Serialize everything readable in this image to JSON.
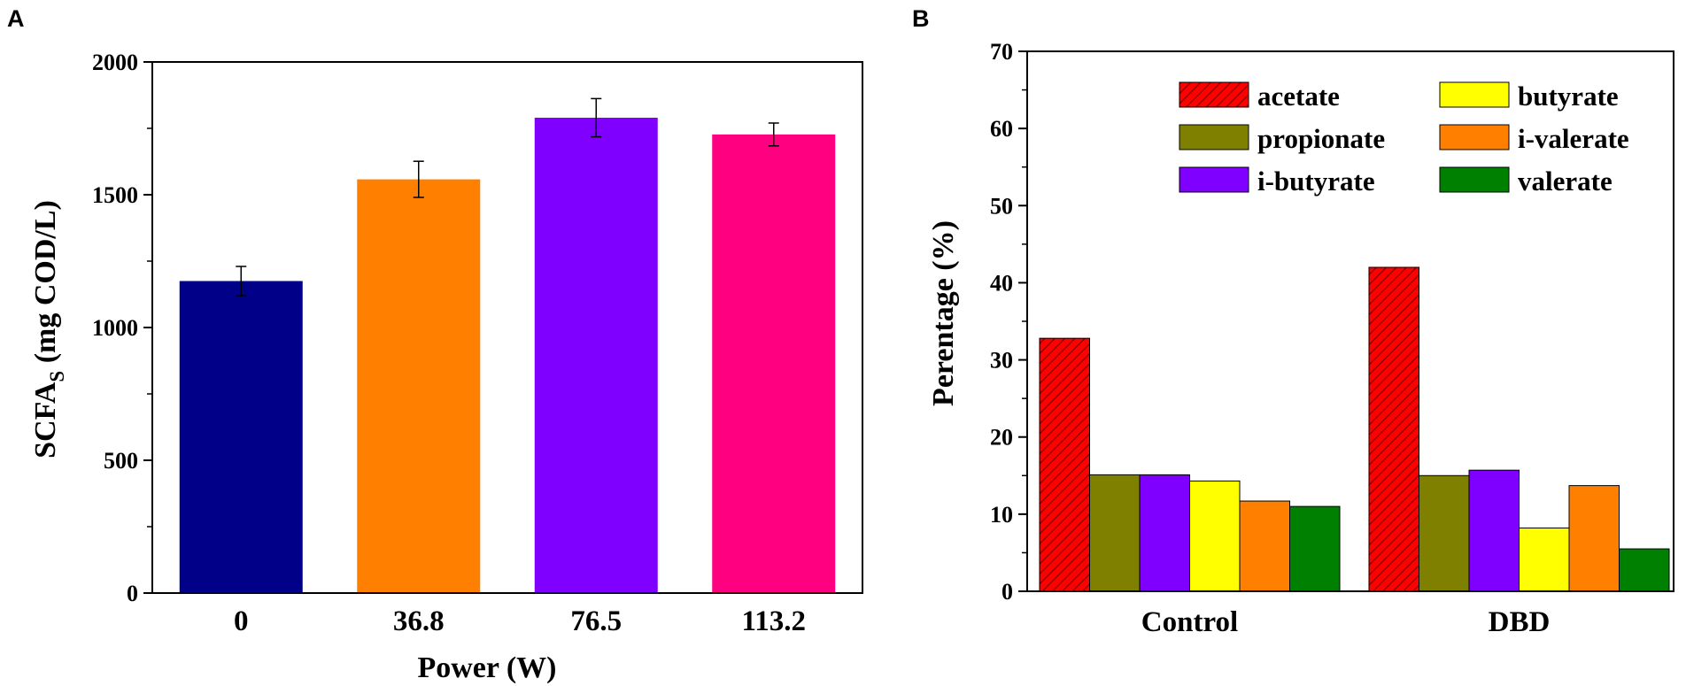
{
  "chart_data": [
    {
      "panel": "A",
      "type": "bar",
      "xlabel": "Power (W)",
      "ylabel_main": "SCFA",
      "ylabel_sub": "S",
      "ylabel_tail": " (mg COD/L)",
      "categories": [
        "0",
        "36.8",
        "76.5",
        "113.2"
      ],
      "values": [
        1175,
        1558,
        1790,
        1727
      ],
      "errors": [
        55,
        68,
        72,
        43
      ],
      "colors": [
        "#000088",
        "#ff8000",
        "#8000ff",
        "#ff0080"
      ],
      "ylim": [
        0,
        2000
      ],
      "yticks": [
        0,
        500,
        1000,
        1500,
        2000
      ],
      "ytick_labels": [
        "0",
        "500",
        "1000",
        "1500",
        "2000"
      ],
      "grid": false
    },
    {
      "panel": "B",
      "type": "bar",
      "xlabel": "",
      "ylabel": "Perentage (%)",
      "categories": [
        "Control",
        "DBD"
      ],
      "series": [
        {
          "name": "acetate",
          "values": [
            32.8,
            42.0
          ],
          "color": "#ff0000",
          "hatch": true
        },
        {
          "name": "propionate",
          "values": [
            15.1,
            15.0
          ],
          "color": "#808000",
          "hatch": false
        },
        {
          "name": "i-butyrate",
          "values": [
            15.1,
            15.7
          ],
          "color": "#8000ff",
          "hatch": false
        },
        {
          "name": "butyrate",
          "values": [
            14.3,
            8.2
          ],
          "color": "#ffff00",
          "hatch": false
        },
        {
          "name": "i-valerate",
          "values": [
            11.7,
            13.7
          ],
          "color": "#ff8000",
          "hatch": false
        },
        {
          "name": "valerate",
          "values": [
            11.0,
            5.5
          ],
          "color": "#008000",
          "hatch": false
        }
      ],
      "legend_order": [
        "acetate",
        "butyrate",
        "propionate",
        "i-valerate",
        "i-butyrate",
        "valerate"
      ],
      "legend_position": "top-right",
      "ylim": [
        0,
        70
      ],
      "yticks": [
        0,
        10,
        20,
        30,
        40,
        50,
        60,
        70
      ],
      "ytick_labels": [
        "0",
        "10",
        "20",
        "30",
        "40",
        "50",
        "60",
        "70"
      ],
      "grid": false
    }
  ]
}
